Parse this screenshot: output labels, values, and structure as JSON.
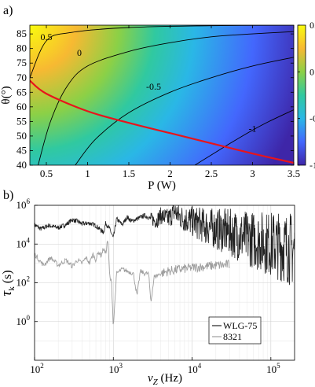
{
  "panel_a": {
    "label": "a)",
    "chart_data": {
      "type": "heatmap",
      "xlabel": "P (W)",
      "ylabel": "θ(°)",
      "xlim": [
        0.3,
        3.5
      ],
      "ylim": [
        40,
        88
      ],
      "x_ticks": [
        "0.5",
        "1",
        "1.5",
        "2",
        "2.5",
        "3",
        "3.5"
      ],
      "x_tick_values": [
        0.5,
        1,
        1.5,
        2,
        2.5,
        3,
        3.5
      ],
      "y_ticks": [
        "40",
        "45",
        "50",
        "55",
        "60",
        "65",
        "70",
        "75",
        "80",
        "85"
      ],
      "y_tick_values": [
        40,
        45,
        50,
        55,
        60,
        65,
        70,
        75,
        80,
        85
      ],
      "colorbar": {
        "ticks": [
          "0.5",
          "0",
          "-0.5",
          "-1"
        ],
        "tick_values": [
          0.5,
          0,
          -0.5,
          -1
        ],
        "range": [
          -1,
          0.5
        ],
        "colors": [
          "#3e26a8",
          "#4367fd",
          "#2ab7e6",
          "#30c9a0",
          "#8cd046",
          "#f7b932",
          "#f9fb0e"
        ]
      },
      "contours": [
        {
          "level": 0.5,
          "label": "0.5",
          "points": [
            [
              0.3,
              70.0
            ],
            [
              0.5,
              82.6
            ],
            [
              0.8,
              85.5
            ],
            [
              1.5,
              87.2
            ],
            [
              2.5,
              87.8
            ],
            [
              3.5,
              88.0
            ]
          ]
        },
        {
          "level": 0,
          "label": "0",
          "points": [
            [
              0.4,
              40
            ],
            [
              0.55,
              55
            ],
            [
              0.75,
              67
            ],
            [
              1.0,
              74
            ],
            [
              1.5,
              79
            ],
            [
              2.0,
              82
            ],
            [
              2.5,
              84
            ],
            [
              3.0,
              85
            ],
            [
              3.5,
              85.8
            ]
          ]
        },
        {
          "level": -0.5,
          "label": "-0.5",
          "points": [
            [
              0.85,
              40
            ],
            [
              1.1,
              49
            ],
            [
              1.5,
              58
            ],
            [
              2.0,
              65
            ],
            [
              2.5,
              70
            ],
            [
              3.0,
              74
            ],
            [
              3.5,
              77
            ]
          ]
        },
        {
          "level": -1,
          "label": "-1",
          "points": [
            [
              2.3,
              40
            ],
            [
              2.7,
              47
            ],
            [
              3.0,
              52
            ],
            [
              3.2,
              55
            ],
            [
              3.5,
              59
            ]
          ]
        }
      ],
      "red_curve": {
        "color": "#e8141b",
        "points": [
          [
            0.3,
            69.0
          ],
          [
            0.5,
            64.5
          ],
          [
            1.0,
            58.5
          ],
          [
            1.5,
            54.5
          ],
          [
            2.0,
            51.0
          ],
          [
            2.5,
            47.5
          ],
          [
            3.0,
            44.0
          ],
          [
            3.5,
            40.8
          ]
        ]
      }
    }
  },
  "panel_b": {
    "label": "b)",
    "chart_data": {
      "type": "line",
      "xlabel": "ν_Z (Hz)",
      "xlabel_base": "ν",
      "xlabel_sub": "Z",
      "xlabel_unit": " (Hz)",
      "ylabel_base": "τ",
      "ylabel_sub": "k",
      "ylabel_unit": " (s)",
      "x_scale": "log",
      "y_scale": "log",
      "xlim": [
        100,
        200000
      ],
      "ylim": [
        0.01,
        1000000
      ],
      "x_ticks": [
        {
          "base": "10",
          "exp": "2",
          "value": 100
        },
        {
          "base": "10",
          "exp": "3",
          "value": 1000
        },
        {
          "base": "10",
          "exp": "4",
          "value": 10000
        },
        {
          "base": "10",
          "exp": "5",
          "value": 100000
        }
      ],
      "y_ticks": [
        {
          "base": "10",
          "exp": "0",
          "value": 1
        },
        {
          "base": "10",
          "exp": "2",
          "value": 100
        },
        {
          "base": "10",
          "exp": "4",
          "value": 10000
        },
        {
          "base": "10",
          "exp": "6",
          "value": 1000000
        }
      ],
      "grid": true,
      "legend_position": "bottom-right",
      "series": [
        {
          "name": "WLG-75",
          "color": "#222222",
          "points": [
            [
              100,
              100000
            ],
            [
              120,
              60000
            ],
            [
              150,
              90000
            ],
            [
              200,
              70000
            ],
            [
              250,
              100000
            ],
            [
              300,
              180000
            ],
            [
              350,
              150000
            ],
            [
              400,
              110000
            ],
            [
              500,
              120000
            ],
            [
              600,
              90000
            ],
            [
              700,
              50000
            ],
            [
              750,
              40000
            ],
            [
              800,
              120000
            ],
            [
              900,
              60000
            ],
            [
              1000,
              20000
            ],
            [
              1100,
              200000
            ],
            [
              1300,
              100000
            ],
            [
              1500,
              250000
            ],
            [
              1700,
              150000
            ],
            [
              2000,
              200000
            ],
            [
              2500,
              300000
            ],
            [
              3000,
              200000
            ],
            [
              3500,
              150000
            ],
            [
              4000,
              300000
            ],
            [
              5000,
              200000
            ],
            [
              6000,
              500000
            ],
            [
              7000,
              250000
            ],
            [
              8000,
              200000
            ],
            [
              10000,
              150000
            ],
            [
              13000,
              100000
            ],
            [
              20000,
              60000
            ],
            [
              30000,
              40000
            ],
            [
              50000,
              20000
            ],
            [
              70000,
              15000
            ],
            [
              100000,
              10000
            ],
            [
              150000,
              7000
            ],
            [
              200000,
              5000
            ]
          ]
        },
        {
          "name": "8321",
          "color": "#9e9e9e",
          "points": [
            [
              100,
              3000
            ],
            [
              130,
              800
            ],
            [
              160,
              2000
            ],
            [
              200,
              800
            ],
            [
              250,
              1500
            ],
            [
              300,
              700
            ],
            [
              350,
              1500
            ],
            [
              400,
              1000
            ],
            [
              450,
              2000
            ],
            [
              500,
              1000
            ],
            [
              550,
              3000
            ],
            [
              600,
              1500
            ],
            [
              650,
              4000
            ],
            [
              700,
              2500
            ],
            [
              750,
              6000
            ],
            [
              800,
              3000
            ],
            [
              850,
              20000
            ],
            [
              900,
              200
            ],
            [
              950,
              100
            ],
            [
              1000,
              0.5
            ],
            [
              1100,
              300
            ],
            [
              1300,
              500
            ],
            [
              1500,
              400
            ],
            [
              1800,
              300
            ],
            [
              2000,
              20
            ],
            [
              2200,
              400
            ],
            [
              2500,
              300
            ],
            [
              2800,
              300
            ],
            [
              3000,
              10
            ],
            [
              3300,
              200
            ],
            [
              4000,
              300
            ],
            [
              5000,
              400
            ],
            [
              7000,
              500
            ],
            [
              10000,
              600
            ],
            [
              15000,
              700
            ],
            [
              20000,
              800
            ],
            [
              25000,
              800
            ],
            [
              30000,
              900
            ]
          ]
        }
      ]
    }
  }
}
